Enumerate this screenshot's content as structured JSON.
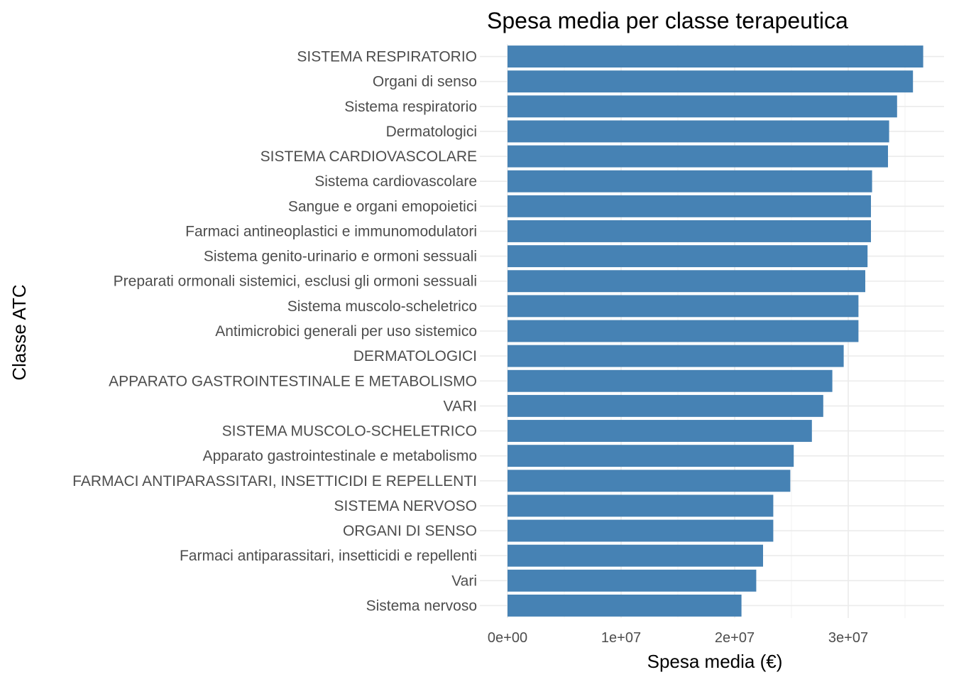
{
  "chart_data": {
    "type": "bar",
    "orientation": "horizontal",
    "title": "Spesa media per classe terapeutica",
    "xlabel": "Spesa media (€)",
    "ylabel": "Classe ATC",
    "xlim": [
      0,
      38500000
    ],
    "x_ticks": [
      0,
      10000000,
      20000000,
      30000000
    ],
    "x_tick_labels": [
      "0e+00",
      "1e+07",
      "2e+07",
      "3e+07"
    ],
    "grid": true,
    "legend": "none",
    "bar_color": "#4682b4",
    "categories": [
      "SISTEMA RESPIRATORIO",
      "Organi di senso",
      "Sistema respiratorio",
      "Dermatologici",
      "SISTEMA CARDIOVASCOLARE",
      "Sistema cardiovascolare",
      "Sangue e organi emopoietici",
      "Farmaci antineoplastici e immunomodulatori",
      "Sistema genito-urinario e ormoni sessuali",
      "Preparati ormonali sistemici, esclusi gli ormoni sessuali",
      "Sistema muscolo-scheletrico",
      "Antimicrobici generali per uso sistemico",
      "DERMATOLOGICI",
      "APPARATO GASTROINTESTINALE E METABOLISMO",
      "VARI",
      "SISTEMA MUSCOLO-SCHELETRICO",
      "Apparato gastrointestinale e metabolismo",
      "FARMACI ANTIPARASSITARI, INSETTICIDI E REPELLENTI",
      "SISTEMA NERVOSO",
      "ORGANI DI SENSO",
      "Farmaci antiparassitari, insetticidi e repellenti",
      "Vari",
      "Sistema nervoso"
    ],
    "values": [
      36600000,
      35700000,
      34300000,
      33600000,
      33500000,
      32100000,
      32000000,
      32000000,
      31700000,
      31500000,
      30900000,
      30900000,
      29600000,
      28600000,
      27800000,
      26800000,
      25200000,
      24900000,
      23400000,
      23400000,
      22500000,
      21900000,
      20600000
    ]
  }
}
